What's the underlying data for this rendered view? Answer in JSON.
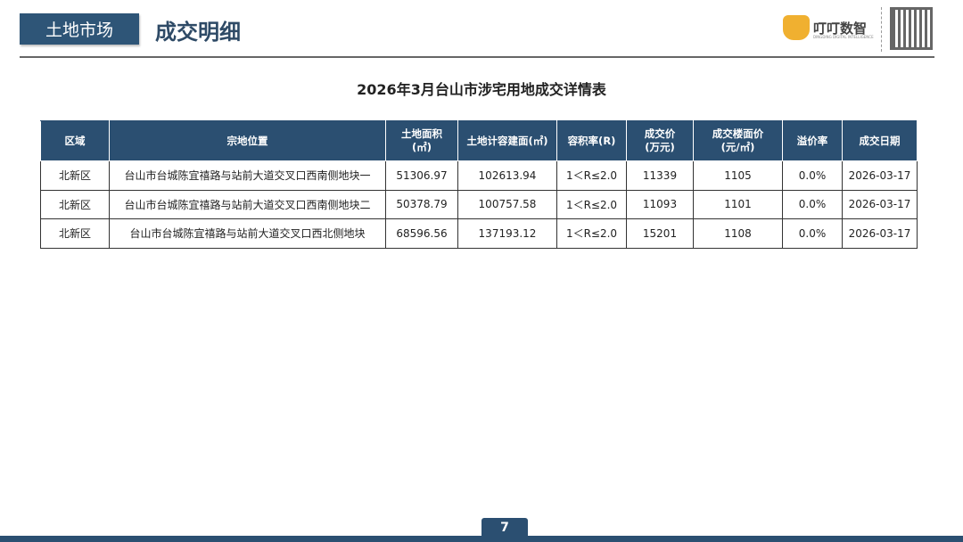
{
  "header": {
    "section_tag": "土地市场",
    "title": "成交明细",
    "logo_text": "叮叮数智",
    "logo_sub": "DINGDING DIGITAL INTELLIGENCE"
  },
  "table": {
    "title": "2026年3月台山市涉宅用地成交详情表",
    "columns": [
      "区域",
      "宗地位置",
      "土地面积\n(㎡)",
      "土地计容建面(㎡)",
      "容积率(R)",
      "成交价\n(万元)",
      "成交楼面价\n(元/㎡)",
      "溢价率",
      "成交日期"
    ],
    "rows": [
      [
        "北新区",
        "台山市台城陈宜禧路与站前大道交叉口西南侧地块一",
        "51306.97",
        "102613.94",
        "1＜R≤2.0",
        "11339",
        "1105",
        "0.0%",
        "2026-03-17"
      ],
      [
        "北新区",
        "台山市台城陈宜禧路与站前大道交叉口西南侧地块二",
        "50378.79",
        "100757.58",
        "1＜R≤2.0",
        "11093",
        "1101",
        "0.0%",
        "2026-03-17"
      ],
      [
        "北新区",
        "台山市台城陈宜禧路与站前大道交叉口西北侧地块",
        "68596.56",
        "137193.12",
        "1＜R≤2.0",
        "15201",
        "1108",
        "0.0%",
        "2026-03-17"
      ]
    ]
  },
  "footer": {
    "page_number": "7"
  },
  "colors": {
    "primary": "#2b4f71",
    "logo": "#f0b030"
  }
}
